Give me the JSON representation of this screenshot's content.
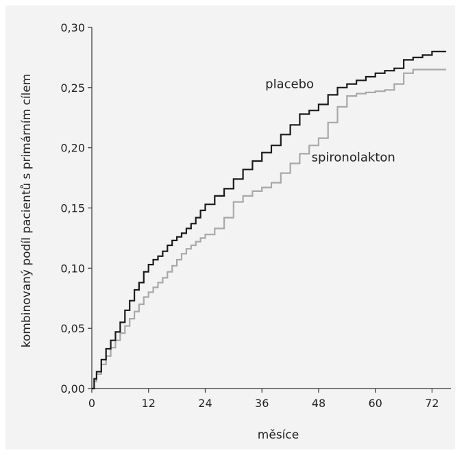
{
  "chart_data": {
    "type": "line",
    "xlabel": "měsíce",
    "ylabel": "kombinovaný podíl pacientů s primárním cílem",
    "xlim": [
      0,
      76
    ],
    "ylim": [
      0,
      0.3
    ],
    "x_ticks": [
      0,
      12,
      24,
      36,
      48,
      60,
      72
    ],
    "x_tick_labels": [
      "0",
      "12",
      "24",
      "36",
      "48",
      "60",
      "72"
    ],
    "y_ticks": [
      0,
      0.05,
      0.1,
      0.15,
      0.2,
      0.25,
      0.3
    ],
    "y_tick_labels": [
      "0,00",
      "0,05",
      "0,10",
      "0,15",
      "0,20",
      "0,25",
      "0,30"
    ],
    "grid": false,
    "series": [
      {
        "name": "placebo",
        "color": "#1a1a1a",
        "step": true,
        "x": [
          0,
          0.5,
          1,
          2,
          3,
          4,
          5,
          6,
          7,
          8,
          9,
          10,
          11,
          12,
          13,
          14,
          15,
          16,
          17,
          18,
          19,
          20,
          21,
          22,
          23,
          24,
          26,
          28,
          30,
          32,
          34,
          36,
          38,
          40,
          42,
          44,
          46,
          48,
          50,
          52,
          54,
          56,
          58,
          60,
          62,
          64,
          66,
          68,
          70,
          72,
          75
        ],
        "y": [
          0,
          0.008,
          0.014,
          0.024,
          0.033,
          0.04,
          0.047,
          0.055,
          0.065,
          0.073,
          0.082,
          0.088,
          0.097,
          0.103,
          0.107,
          0.11,
          0.114,
          0.119,
          0.123,
          0.126,
          0.129,
          0.133,
          0.137,
          0.142,
          0.148,
          0.153,
          0.16,
          0.166,
          0.174,
          0.182,
          0.189,
          0.196,
          0.202,
          0.211,
          0.219,
          0.228,
          0.231,
          0.236,
          0.244,
          0.25,
          0.253,
          0.256,
          0.259,
          0.262,
          0.264,
          0.266,
          0.273,
          0.275,
          0.277,
          0.28,
          0.28
        ]
      },
      {
        "name": "spironolakton",
        "color": "#a8a8a8",
        "step": true,
        "x": [
          0,
          0.5,
          1,
          2,
          3,
          4,
          5,
          6,
          7,
          8,
          9,
          10,
          11,
          12,
          13,
          14,
          15,
          16,
          17,
          18,
          19,
          20,
          21,
          22,
          23,
          24,
          26,
          28,
          30,
          32,
          34,
          36,
          38,
          40,
          42,
          44,
          46,
          48,
          50,
          52,
          54,
          56,
          58,
          60,
          62,
          64,
          66,
          68,
          70,
          72,
          75
        ],
        "y": [
          0,
          0.006,
          0.012,
          0.02,
          0.027,
          0.034,
          0.04,
          0.046,
          0.052,
          0.058,
          0.064,
          0.07,
          0.076,
          0.08,
          0.084,
          0.088,
          0.092,
          0.097,
          0.102,
          0.107,
          0.112,
          0.116,
          0.119,
          0.122,
          0.125,
          0.128,
          0.133,
          0.142,
          0.155,
          0.16,
          0.164,
          0.167,
          0.171,
          0.179,
          0.187,
          0.195,
          0.202,
          0.208,
          0.221,
          0.234,
          0.243,
          0.245,
          0.246,
          0.247,
          0.248,
          0.253,
          0.262,
          0.265,
          0.265,
          0.265,
          0.265
        ]
      }
    ],
    "annotations": [
      {
        "text": "placebo",
        "x": 47,
        "y": 0.253,
        "anchor": "end"
      },
      {
        "text": "spironolakton",
        "x": 46.5,
        "y": 0.192,
        "anchor": "start"
      }
    ]
  }
}
